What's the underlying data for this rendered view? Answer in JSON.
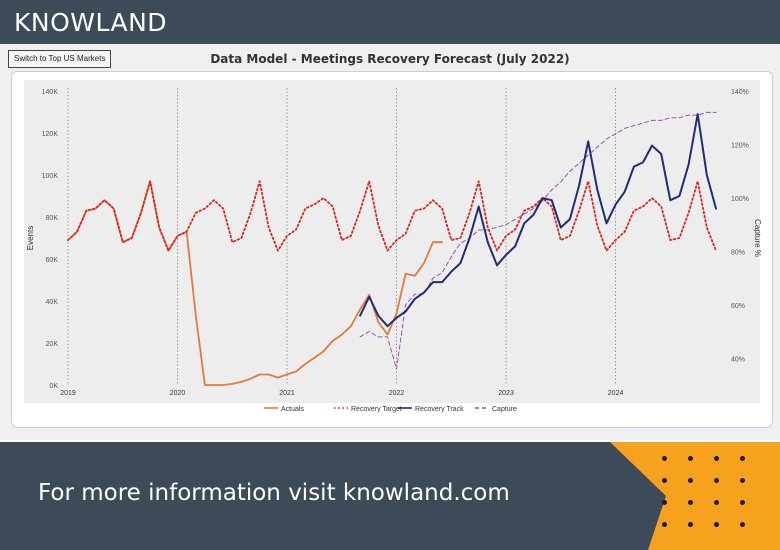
{
  "brand": {
    "name": "KNOWLAND"
  },
  "controls": {
    "switch_label": "Switch to Top US Markets"
  },
  "footer": {
    "text": "For more information visit knowland.com"
  },
  "colors": {
    "header_bg": "#3d4b58",
    "accent_orange": "#f6a21e",
    "actuals": "#e07b3e",
    "recovery_target": "#d9261c",
    "recovery_track": "#1f2d7a",
    "capture": "#9b4fb5"
  },
  "chart_data": {
    "type": "line",
    "title": "Data Model - Meetings Recovery Forecast (July 2022)",
    "xlabel": "",
    "ylabel": "Events",
    "y2label": "Capture %",
    "x_range": [
      2019.0,
      2024.917
    ],
    "ylim": [
      0,
      140000
    ],
    "y2lim": [
      30,
      140
    ],
    "y_ticks": [
      0,
      20000,
      40000,
      60000,
      80000,
      100000,
      120000,
      140000
    ],
    "y_tick_labels": [
      "0K",
      "20K",
      "40K",
      "60K",
      "80K",
      "100K",
      "120K",
      "140K"
    ],
    "y2_ticks": [
      40,
      60,
      80,
      100,
      120,
      140
    ],
    "y2_tick_labels": [
      "40%",
      "60%",
      "80%",
      "100%",
      "120%",
      "140%"
    ],
    "x_ticks": [
      2019,
      2020,
      2021,
      2022,
      2023,
      2024
    ],
    "x_tick_labels": [
      "2019",
      "2020",
      "2021",
      "2022",
      "2023",
      "2024"
    ],
    "vertical_gridlines": true,
    "legend_position": "bottom-center",
    "series": [
      {
        "name": "Actuals",
        "axis": "left",
        "style": "solid",
        "x": [
          2019.0,
          2019.083,
          2019.167,
          2019.25,
          2019.333,
          2019.417,
          2019.5,
          2019.583,
          2019.667,
          2019.75,
          2019.833,
          2019.917,
          2020.0,
          2020.083,
          2020.167,
          2020.25,
          2020.333,
          2020.417,
          2020.5,
          2020.583,
          2020.667,
          2020.75,
          2020.833,
          2020.917,
          2021.0,
          2021.083,
          2021.167,
          2021.25,
          2021.333,
          2021.417,
          2021.5,
          2021.583,
          2021.667,
          2021.75,
          2021.833,
          2021.917,
          2022.0,
          2022.083,
          2022.167,
          2022.25,
          2022.333,
          2022.417
        ],
        "values": [
          69000,
          73000,
          83000,
          84000,
          88000,
          84000,
          68000,
          70000,
          82000,
          97000,
          75000,
          64000,
          71000,
          73000,
          33000,
          0,
          0,
          0,
          500,
          1500,
          3000,
          5000,
          5000,
          3500,
          5000,
          6500,
          10000,
          13000,
          16000,
          21000,
          24000,
          28000,
          36000,
          43000,
          30000,
          24000,
          34000,
          53000,
          52000,
          58000,
          68000,
          68000
        ]
      },
      {
        "name": "Recovery Target",
        "axis": "left",
        "style": "dotted",
        "x": [
          2019.0,
          2019.083,
          2019.167,
          2019.25,
          2019.333,
          2019.417,
          2019.5,
          2019.583,
          2019.667,
          2019.75,
          2019.833,
          2019.917,
          2020.0,
          2020.083,
          2020.167,
          2020.25,
          2020.333,
          2020.417,
          2020.5,
          2020.583,
          2020.667,
          2020.75,
          2020.833,
          2020.917,
          2021.0,
          2021.083,
          2021.167,
          2021.25,
          2021.333,
          2021.417,
          2021.5,
          2021.583,
          2021.667,
          2021.75,
          2021.833,
          2021.917,
          2022.0,
          2022.083,
          2022.167,
          2022.25,
          2022.333,
          2022.417,
          2022.5,
          2022.583,
          2022.667,
          2022.75,
          2022.833,
          2022.917,
          2023.0,
          2023.083,
          2023.167,
          2023.25,
          2023.333,
          2023.417,
          2023.5,
          2023.583,
          2023.667,
          2023.75,
          2023.833,
          2023.917,
          2024.0,
          2024.083,
          2024.167,
          2024.25,
          2024.333,
          2024.417,
          2024.5,
          2024.583,
          2024.667,
          2024.75,
          2024.833,
          2024.917
        ],
        "values": [
          69000,
          73000,
          83000,
          84000,
          88000,
          84000,
          68000,
          70000,
          82000,
          97000,
          75000,
          64000,
          71000,
          73000,
          82000,
          84000,
          88000,
          84000,
          68000,
          70000,
          82000,
          97000,
          75000,
          64000,
          71000,
          74000,
          84000,
          86000,
          89000,
          85000,
          69000,
          71000,
          83000,
          97000,
          76000,
          64000,
          69000,
          72000,
          83000,
          84000,
          88000,
          84000,
          69000,
          70000,
          82000,
          97000,
          75000,
          64000,
          71000,
          74000,
          83000,
          85000,
          89000,
          85000,
          69000,
          71000,
          83000,
          97000,
          76000,
          64000,
          69000,
          73000,
          83000,
          85000,
          89000,
          85000,
          69000,
          70000,
          82000,
          97000,
          75000,
          64000
        ]
      },
      {
        "name": "Recovery Track",
        "axis": "left",
        "style": "solid",
        "x": [
          2021.667,
          2021.75,
          2021.833,
          2021.917,
          2022.0,
          2022.083,
          2022.167,
          2022.25,
          2022.333,
          2022.417,
          2022.5,
          2022.583,
          2022.667,
          2022.75,
          2022.833,
          2022.917,
          2023.0,
          2023.083,
          2023.167,
          2023.25,
          2023.333,
          2023.417,
          2023.5,
          2023.583,
          2023.667,
          2023.75,
          2023.833,
          2023.917,
          2024.0,
          2024.083,
          2024.167,
          2024.25,
          2024.333,
          2024.417,
          2024.5,
          2024.583,
          2024.667,
          2024.75,
          2024.833,
          2024.917
        ],
        "values": [
          33000,
          42000,
          33000,
          28000,
          32000,
          35000,
          41000,
          44000,
          49000,
          49000,
          54000,
          58000,
          70000,
          85000,
          68000,
          57000,
          62000,
          66000,
          77000,
          81000,
          89000,
          88000,
          75000,
          79000,
          95000,
          116000,
          93000,
          77000,
          86000,
          92000,
          104000,
          106000,
          114000,
          110000,
          88000,
          90000,
          105000,
          129000,
          100000,
          84000
        ]
      },
      {
        "name": "Capture",
        "axis": "right",
        "style": "dashed",
        "x": [
          2021.667,
          2021.75,
          2021.833,
          2021.917,
          2022.0,
          2022.083,
          2022.167,
          2022.25,
          2022.333,
          2022.417,
          2022.5,
          2022.583,
          2022.667,
          2022.75,
          2022.833,
          2022.917,
          2023.0,
          2023.083,
          2023.167,
          2023.25,
          2023.333,
          2023.417,
          2023.5,
          2023.583,
          2023.667,
          2023.75,
          2023.833,
          2023.917,
          2024.0,
          2024.083,
          2024.167,
          2024.25,
          2024.333,
          2024.417,
          2024.5,
          2024.583,
          2024.667,
          2024.75,
          2024.833,
          2024.917
        ],
        "values": [
          48,
          50,
          48,
          48,
          36,
          60,
          64,
          64,
          70,
          72,
          78,
          83,
          85,
          88,
          88,
          89,
          90,
          92,
          94,
          96,
          99,
          103,
          106,
          110,
          113,
          116,
          119,
          122,
          124,
          126,
          127,
          128,
          129,
          129,
          130,
          130,
          131,
          131,
          132,
          132
        ]
      }
    ]
  }
}
